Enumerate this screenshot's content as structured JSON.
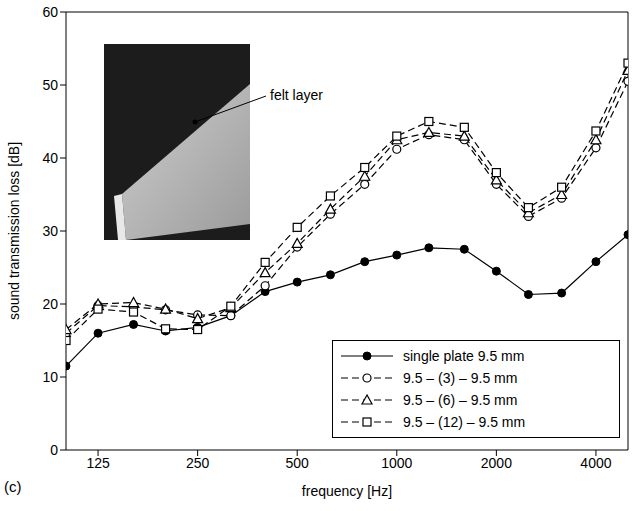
{
  "chart_data": {
    "type": "line",
    "panel_label": "(c)",
    "annotation": "felt layer",
    "x_label": "frequency [Hz]",
    "y_label": "sound transmission loss [dB]",
    "log": "x",
    "grid": false,
    "legend": "bottom-right",
    "xlim": [
      100,
      5000
    ],
    "xticks": [
      125,
      250,
      500,
      1000,
      2000,
      4000
    ],
    "ylim": [
      0,
      60
    ],
    "yticks": [
      0,
      10,
      20,
      30,
      40,
      50,
      60
    ],
    "x": [
      100,
      125,
      160,
      200,
      250,
      315,
      400,
      500,
      630,
      800,
      1000,
      1250,
      1600,
      2000,
      2500,
      3150,
      4000,
      5000
    ],
    "series": [
      {
        "name": "single plate 9.5 mm",
        "color": "#000000",
        "marker": "filled_circle",
        "line_style": "solid",
        "values": [
          11.5,
          16,
          17.2,
          16.3,
          16.8,
          18.4,
          21.7,
          23,
          24,
          25.8,
          26.7,
          27.7,
          27.5,
          24.5,
          21.3,
          21.5,
          25.8,
          29.5
        ]
      },
      {
        "name": "9.5 – (3) – 9.5 mm",
        "color": "#000000",
        "marker": "circle",
        "line_style": "dashed",
        "values": [
          16,
          19.8,
          19.6,
          19.2,
          18.5,
          18.4,
          22.5,
          27.8,
          32.3,
          36.4,
          41.2,
          43.2,
          42.5,
          36.4,
          32,
          34.5,
          41.4,
          50.5
        ]
      },
      {
        "name": "9.5 – (6) – 9.5 mm",
        "color": "#000000",
        "marker": "triangle",
        "line_style": "dashed",
        "values": [
          16.5,
          20,
          20.2,
          19.3,
          18,
          19.5,
          24.3,
          28.3,
          33,
          37.5,
          42.5,
          43.5,
          43,
          37,
          32.5,
          35,
          42.5,
          52
        ]
      },
      {
        "name": "9.5 – (12) – 9.5 mm",
        "color": "#000000",
        "marker": "square",
        "line_style": "dashed",
        "values": [
          15,
          19.3,
          18.9,
          16.6,
          16.5,
          19.7,
          25.7,
          30.5,
          34.8,
          38.7,
          43,
          45,
          44.2,
          38,
          33.2,
          36,
          43.7,
          53
        ]
      }
    ]
  }
}
